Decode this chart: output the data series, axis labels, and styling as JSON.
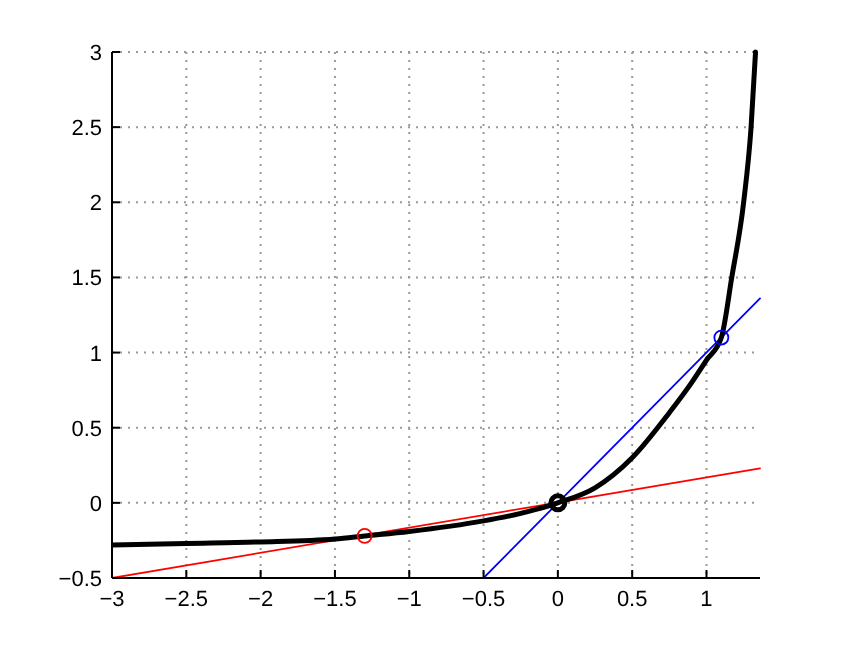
{
  "chart_data": {
    "type": "line",
    "xlim": [
      -3,
      1.36
    ],
    "ylim": [
      -0.5,
      3
    ],
    "xticks": [
      -3,
      -2.5,
      -2,
      -1.5,
      -1,
      -0.5,
      0,
      0.5,
      1
    ],
    "yticks": [
      -0.5,
      0,
      0.5,
      1,
      1.5,
      2,
      2.5,
      3
    ],
    "grid": true,
    "series": [
      {
        "color": "#ff0000",
        "x": [
          -3,
          1.36
        ],
        "values": [
          -0.5,
          0.23
        ]
      },
      {
        "color": "#0000ff",
        "x": [
          -0.5,
          1.36
        ],
        "values": [
          -0.5,
          1.36
        ]
      },
      {
        "color": "#000000",
        "x": [
          -3,
          -2.5,
          -2,
          -1.5,
          -1.3,
          -1,
          -0.5,
          -0.25,
          0,
          0.25,
          0.5,
          0.75,
          0.9,
          1.0,
          1.1,
          1.17,
          1.25,
          1.3,
          1.33
        ],
        "values": [
          -0.28,
          -0.27,
          -0.26,
          -0.24,
          -0.22,
          -0.19,
          -0.12,
          -0.07,
          0,
          0.1,
          0.3,
          0.6,
          0.8,
          0.95,
          1.1,
          1.5,
          2,
          2.5,
          3
        ]
      },
      {
        "type": "scatter",
        "marker": "circle",
        "color": "#ff0000",
        "x": [
          -1.3
        ],
        "values": [
          -0.22
        ]
      },
      {
        "type": "scatter",
        "marker": "circle",
        "color": "#000000",
        "x": [
          0
        ],
        "values": [
          0
        ]
      },
      {
        "type": "scatter",
        "marker": "circle",
        "color": "#0000ff",
        "x": [
          1.1
        ],
        "values": [
          1.1
        ]
      }
    ]
  }
}
